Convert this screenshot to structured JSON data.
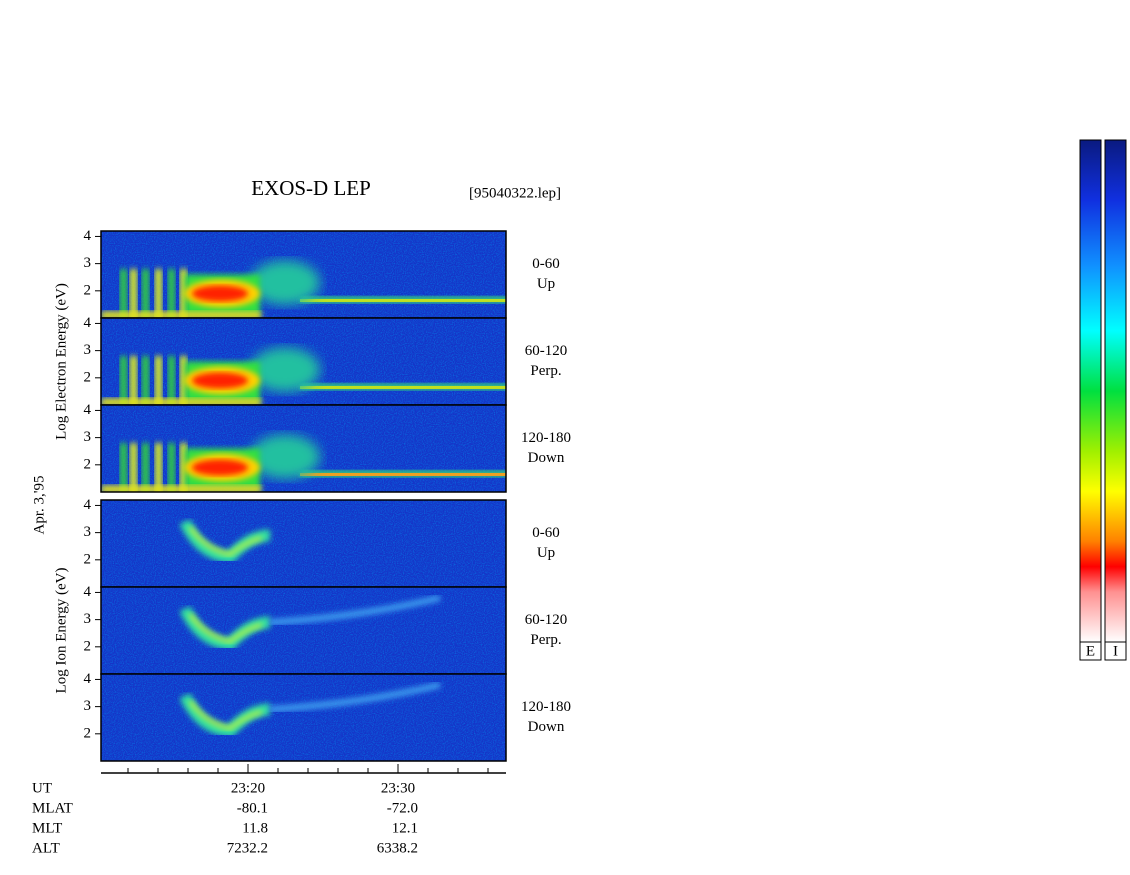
{
  "chart_data": {
    "type": "spectrogram",
    "title": "EXOS-D LEP",
    "file": "[95040322.lep]",
    "date": "Apr. 3,'95",
    "xlim": [
      1390.2,
      1417.2
    ],
    "xticks": [
      {
        "value": 1400,
        "label": "23:20"
      },
      {
        "value": 1410,
        "label": "23:30"
      }
    ],
    "xminorticks": [
      1392,
      1394,
      1396,
      1398,
      1402,
      1404,
      1406,
      1408,
      1412,
      1414,
      1416
    ],
    "ylim": [
      1,
      4.2
    ],
    "yticks": [
      2,
      3,
      4
    ],
    "groups": [
      {
        "species": "electron",
        "ylabel": "Log Electron Energy (eV)",
        "panels": [
          {
            "range": "0-60",
            "direction": "Up"
          },
          {
            "range": "60-120",
            "direction": "Perp."
          },
          {
            "range": "120-180",
            "direction": "Down"
          }
        ]
      },
      {
        "species": "ion",
        "ylabel": "Log Ion Energy (eV)",
        "panels": [
          {
            "range": "0-60",
            "direction": "Up"
          },
          {
            "range": "60-120",
            "direction": "Perp."
          },
          {
            "range": "120-180",
            "direction": "Down"
          }
        ]
      }
    ],
    "orbit_header": "UT",
    "orbit": [
      {
        "name": "MLAT",
        "values": [
          "-80.1",
          "-72.0"
        ]
      },
      {
        "name": "MLT",
        "values": [
          "11.8",
          "12.1"
        ]
      },
      {
        "name": "ALT",
        "values": [
          "7232.2",
          "6338.2"
        ]
      }
    ],
    "colorbars": [
      "E",
      "I"
    ]
  }
}
